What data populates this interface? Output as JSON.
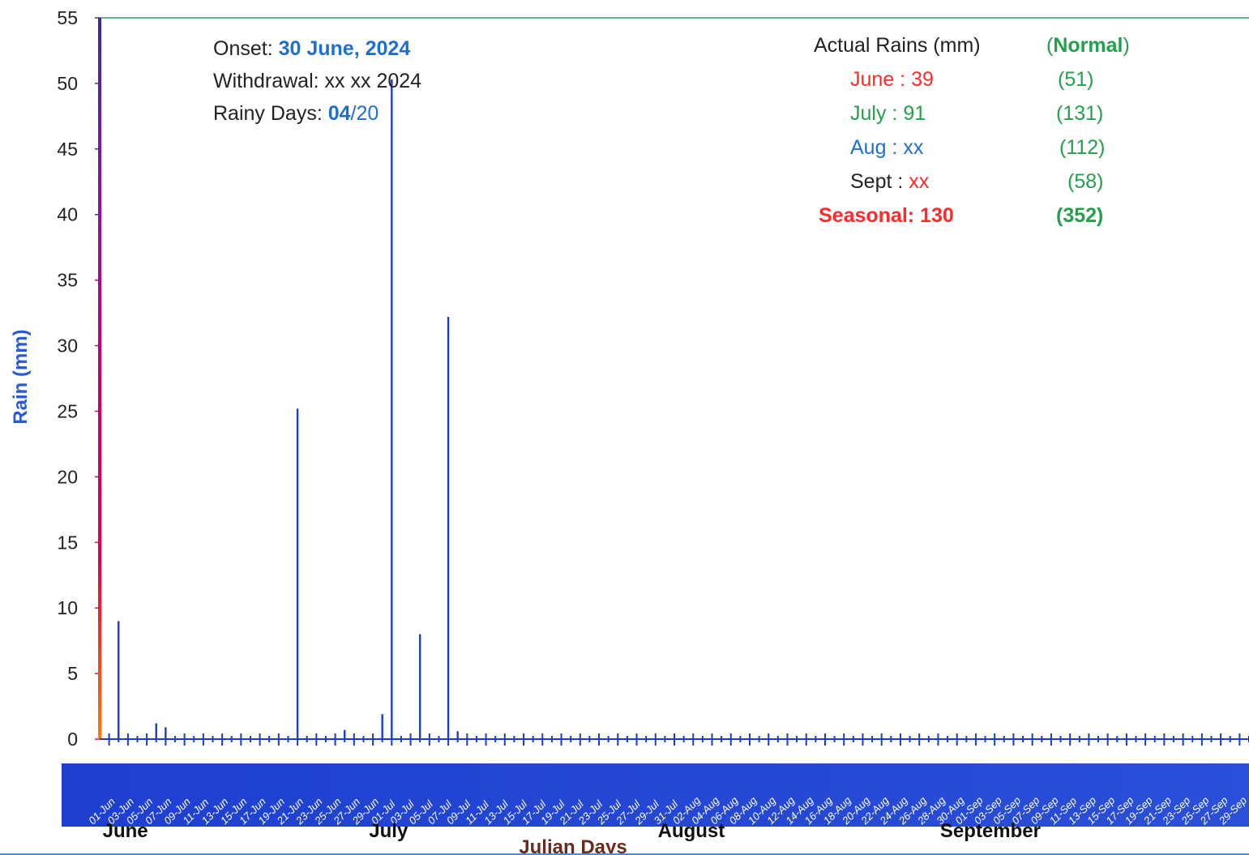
{
  "info_box": {
    "onset_label": "Onset:",
    "onset_value": "30 June, 2024",
    "withdrawal_label": "Withdrawal:",
    "withdrawal_value": "xx xx 2024",
    "rainy_days_label": "Rainy Days:",
    "rainy_days_actual": "04",
    "rainy_days_sep": "/",
    "rainy_days_total": "20"
  },
  "rains_table": {
    "header_left": "Actual Rains (mm)",
    "header_right_open": "(",
    "header_right_word": "Normal",
    "header_right_close": ")",
    "rows": [
      {
        "month": "June",
        "sep": " : ",
        "actual": "39",
        "normal": "(51)",
        "color": "#ff3b3b"
      },
      {
        "month": "July",
        "sep": " : ",
        "actual": "91",
        "normal": "(131)",
        "color": "#22a04a"
      },
      {
        "month": "Aug",
        "sep": " : ",
        "actual": "xx",
        "normal": "(112)",
        "color": "#1f6fd1"
      },
      {
        "month": "Sept",
        "sep": " : ",
        "actual": "xx",
        "normal": "(58)",
        "color": "#222222"
      }
    ],
    "seasonal_label": "Seasonal: 130",
    "seasonal_normal": "(352)"
  },
  "chart_data": {
    "type": "bar",
    "ylabel": "Rain (mm)",
    "xlabel": "Julian Days",
    "ylim": [
      0,
      55
    ],
    "yticks": [
      0,
      5,
      10,
      15,
      20,
      25,
      30,
      35,
      40,
      45,
      50,
      55
    ],
    "months": [
      "June",
      "July",
      "August",
      "September"
    ],
    "date_tick_labels": [
      "01-Jun",
      "03-Jun",
      "05-Jun",
      "07-Jun",
      "09-Jun",
      "11-Jun",
      "13-Jun",
      "15-Jun",
      "17-Jun",
      "19-Jun",
      "21-Jun",
      "23-Jun",
      "25-Jun",
      "27-Jun",
      "29-Jun",
      "01-Jul",
      "03-Jul",
      "05-Jul",
      "07-Jul",
      "09-Jul",
      "11-Jul",
      "13-Jul",
      "15-Jul",
      "17-Jul",
      "19-Jul",
      "21-Jul",
      "23-Jul",
      "25-Jul",
      "27-Jul",
      "29-Jul",
      "31-Jul",
      "02-Aug",
      "04-Aug",
      "06-Aug",
      "08-Aug",
      "10-Aug",
      "12-Aug",
      "14-Aug",
      "16-Aug",
      "18-Aug",
      "20-Aug",
      "22-Aug",
      "24-Aug",
      "26-Aug",
      "28-Aug",
      "30-Aug",
      "01-Sep",
      "03-Sep",
      "05-Sep",
      "07-Sep",
      "09-Sep",
      "11-Sep",
      "13-Sep",
      "15-Sep",
      "17-Sep",
      "19-Sep",
      "21-Sep",
      "23-Sep",
      "25-Sep",
      "27-Sep",
      "29-Sep"
    ],
    "series": [
      {
        "values": [
          {
            "date": "02-Jun",
            "value": 9.0
          },
          {
            "date": "06-Jun",
            "value": 1.2
          },
          {
            "date": "07-Jun",
            "value": 0.9
          },
          {
            "date": "21-Jun",
            "value": 25.2
          },
          {
            "date": "26-Jun",
            "value": 0.7
          },
          {
            "date": "30-Jun",
            "value": 1.9
          },
          {
            "date": "01-Jul",
            "value": 50.3
          },
          {
            "date": "04-Jul",
            "value": 8.0
          },
          {
            "date": "07-Jul",
            "value": 32.2
          },
          {
            "date": "08-Jul",
            "value": 0.6
          }
        ]
      }
    ],
    "grid": false,
    "colors": {
      "bars": "#1a3fbf",
      "date_band": "#1e3fcf",
      "top_border": "#2aa05a",
      "axis_gradient": [
        "#ff7a00",
        "#e0004a",
        "#c0007a",
        "#7a1aa0",
        "#3a2aa0"
      ]
    }
  }
}
